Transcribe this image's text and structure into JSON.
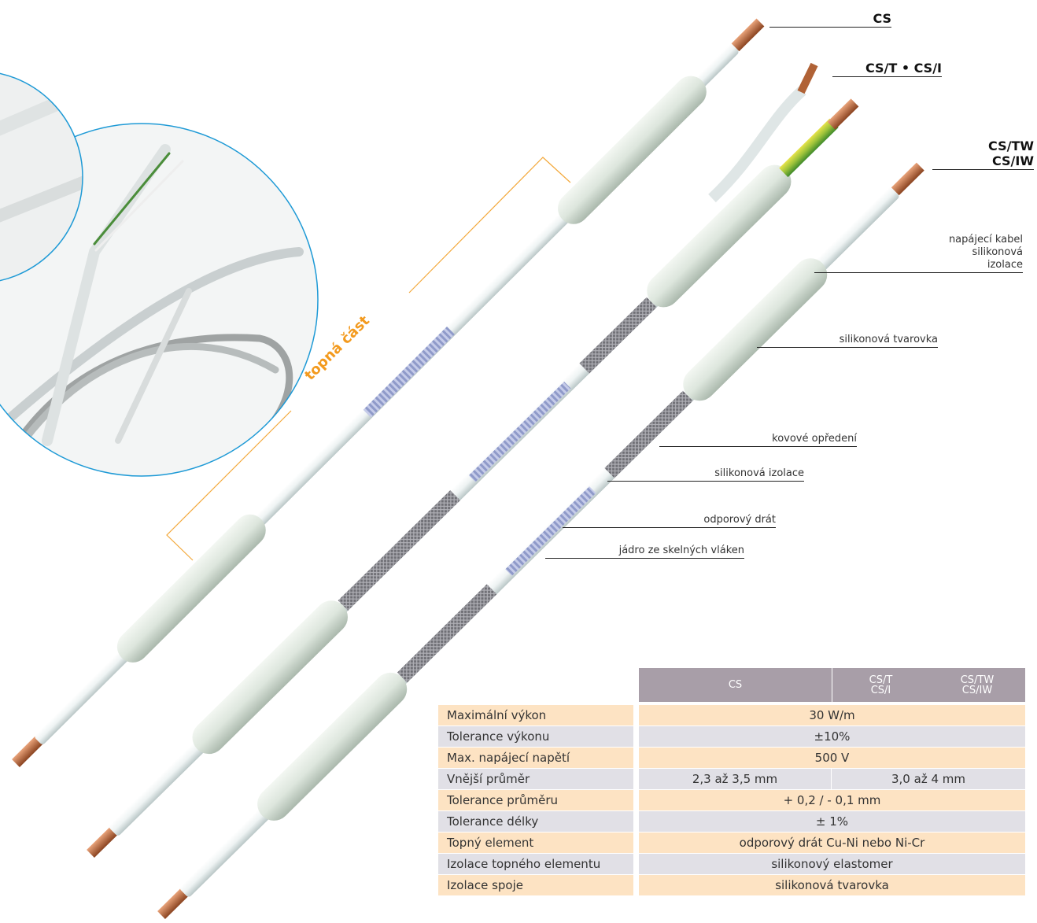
{
  "variants": {
    "cs": "CS",
    "cs_t_i": "CS/T • CS/I",
    "cs_tw_iw": [
      "CS/TW",
      "CS/IW"
    ]
  },
  "heating_part": "topná část",
  "callouts": {
    "supply_cable": [
      "napájecí kabel",
      "silikonová",
      "izolace"
    ],
    "molding": "silikonová tvarovka",
    "metal_braid": "kovové opředení",
    "silicone_insulation": "silikonová izolace",
    "resistance_wire": "odporový drát",
    "glass_core": "jádro ze skelných vláken"
  },
  "table": {
    "header": [
      [
        "CS"
      ],
      [
        "CS/T",
        "CS/I"
      ],
      [
        "CS/TW",
        "CS/IW"
      ]
    ],
    "rows": [
      {
        "label": "Maximální výkon",
        "values": [
          "30 W/m"
        ]
      },
      {
        "label": "Tolerance výkonu",
        "values": [
          "±10%"
        ]
      },
      {
        "label": "Max. napájecí napětí",
        "values": [
          "500 V"
        ]
      },
      {
        "label": "Vnější průměr",
        "values": [
          "2,3 až 3,5 mm",
          "3,0 až 4 mm"
        ]
      },
      {
        "label": "Tolerance průměru",
        "values": [
          "+ 0,2 / - 0,1 mm"
        ]
      },
      {
        "label": "Tolerance délky",
        "values": [
          "± 1%"
        ]
      },
      {
        "label": "Topný element",
        "values": [
          "odporový drát Cu-Ni nebo Ni-Cr"
        ]
      },
      {
        "label": "Izolace topného elementu",
        "values": [
          "silikonový elastomer"
        ]
      },
      {
        "label": "Izolace spoje",
        "values": [
          "silikonová tvarovka"
        ]
      }
    ]
  }
}
